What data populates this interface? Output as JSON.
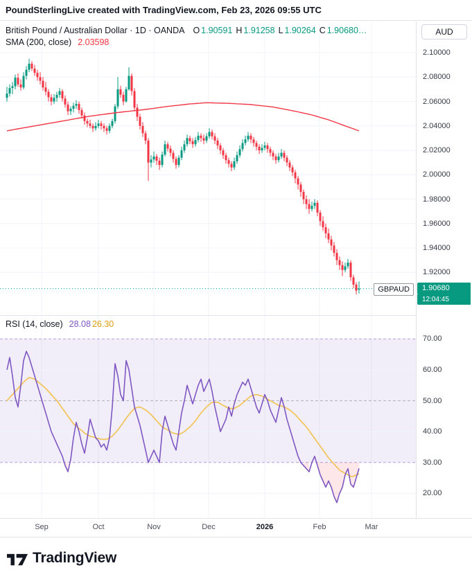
{
  "header": {
    "attribution": "PoundSterlingLive created with TradingView.com, Feb 23, 2026 09:55 UTC"
  },
  "legend": {
    "main_title": "British Pound / Australian Dollar · 1D · OANDA",
    "o_key": "O",
    "o_val": "1.90591",
    "h_key": "H",
    "h_val": "1.91258",
    "l_key": "L",
    "l_val": "1.90264",
    "c_key": "C",
    "c_val": "1.90680…",
    "sma_title": "SMA (200, close)",
    "sma_val": "2.03598",
    "rsi_title": "RSI (14, close)",
    "rsi_val": "28.08",
    "rsi_ma_val": "26.30"
  },
  "price_axis": {
    "currency": "AUD",
    "symbol": "GBPAUD",
    "last_price_label": "1.90680",
    "countdown": "12:04:45"
  },
  "footer": {
    "brand": "TradingView"
  },
  "colors": {
    "up": "#089981",
    "down": "#F23645",
    "sma": "#F23645",
    "rsi": "#7E57C2",
    "rsi_ma": "#F2C14E",
    "grid": "#F0F3FA",
    "band_fill": "rgba(126,87,194,0.10)",
    "band_line": "rgba(126,87,194,0.55)",
    "mid_line": "rgba(120,123,134,0.55)",
    "oversold_fill": "rgba(242,54,69,0.12)",
    "label_bg": "#089981",
    "border": "#E0E3EB"
  },
  "chart_data": {
    "type": "candlestick",
    "title": "British Pound / Australian Dollar",
    "interval": "1D",
    "venue": "OANDA",
    "last_price": 1.9068,
    "price_scale": {
      "min": 1.885,
      "max": 2.125,
      "labels": [
        "2.10000",
        "2.08000",
        "2.06000",
        "2.04000",
        "2.02000",
        "2.00000",
        "1.98000",
        "1.96000",
        "1.94000",
        "1.92000"
      ]
    },
    "time_ticks": [
      {
        "label": "Sep",
        "index": 12.5
      },
      {
        "label": "Oct",
        "index": 33
      },
      {
        "label": "Nov",
        "index": 53
      },
      {
        "label": "Dec",
        "index": 72.75
      },
      {
        "label": "2026",
        "index": 93,
        "major": true
      },
      {
        "label": "Feb",
        "index": 112.75
      },
      {
        "label": "Mar",
        "index": 131.5
      }
    ],
    "ohlc": [
      [
        2.063,
        2.072,
        2.06,
        2.0665
      ],
      [
        2.0665,
        2.074,
        2.064,
        2.071
      ],
      [
        2.071,
        2.076,
        2.066,
        2.0725
      ],
      [
        2.0725,
        2.082,
        2.07,
        2.0795
      ],
      [
        2.0795,
        2.083,
        2.072,
        2.074
      ],
      [
        2.074,
        2.078,
        2.069,
        2.0715
      ],
      [
        2.0715,
        2.084,
        2.07,
        2.081
      ],
      [
        2.081,
        2.089,
        2.078,
        2.086
      ],
      [
        2.086,
        2.095,
        2.084,
        2.091
      ],
      [
        2.091,
        2.093,
        2.085,
        2.087
      ],
      [
        2.087,
        2.09,
        2.081,
        2.0835
      ],
      [
        2.0835,
        2.086,
        2.077,
        2.08
      ],
      [
        2.08,
        2.084,
        2.074,
        2.077
      ],
      [
        2.077,
        2.08,
        2.069,
        2.0715
      ],
      [
        2.0715,
        2.076,
        2.065,
        2.068
      ],
      [
        2.068,
        2.07,
        2.06,
        2.0635
      ],
      [
        2.0635,
        2.066,
        2.057,
        2.06
      ],
      [
        2.06,
        2.066,
        2.058,
        2.063
      ],
      [
        2.063,
        2.068,
        2.06,
        2.0655
      ],
      [
        2.0655,
        2.071,
        2.063,
        2.0685
      ],
      [
        2.0685,
        2.07,
        2.06,
        2.0625
      ],
      [
        2.0625,
        2.065,
        2.055,
        2.0575
      ],
      [
        2.0575,
        2.06,
        2.049,
        2.052
      ],
      [
        2.052,
        2.056,
        2.049,
        2.054
      ],
      [
        2.054,
        2.059,
        2.051,
        2.0565
      ],
      [
        2.0565,
        2.061,
        2.054,
        2.058
      ],
      [
        2.058,
        2.06,
        2.05,
        2.053
      ],
      [
        2.053,
        2.055,
        2.046,
        2.0485
      ],
      [
        2.0485,
        2.051,
        2.041,
        2.044
      ],
      [
        2.044,
        2.046,
        2.039,
        2.042
      ],
      [
        2.042,
        2.045,
        2.038,
        2.04
      ],
      [
        2.04,
        2.042,
        2.035,
        2.038
      ],
      [
        2.038,
        2.043,
        2.036,
        2.04
      ],
      [
        2.04,
        2.045,
        2.038,
        2.042
      ],
      [
        2.042,
        2.044,
        2.037,
        2.04
      ],
      [
        2.04,
        2.042,
        2.035,
        2.038
      ],
      [
        2.038,
        2.04,
        2.033,
        2.036
      ],
      [
        2.036,
        2.042,
        2.034,
        2.04
      ],
      [
        2.04,
        2.046,
        2.038,
        2.044
      ],
      [
        2.044,
        2.058,
        2.042,
        2.056
      ],
      [
        2.056,
        2.08,
        2.054,
        2.07
      ],
      [
        2.07,
        2.073,
        2.063,
        2.0655
      ],
      [
        2.0655,
        2.068,
        2.057,
        2.06
      ],
      [
        2.06,
        2.072,
        2.059,
        2.07
      ],
      [
        2.07,
        2.088,
        2.069,
        2.081
      ],
      [
        2.081,
        2.083,
        2.065,
        2.0685
      ],
      [
        2.0685,
        2.071,
        2.052,
        2.055
      ],
      [
        2.055,
        2.058,
        2.044,
        2.0475
      ],
      [
        2.0475,
        2.05,
        2.037,
        2.04
      ],
      [
        2.04,
        2.043,
        2.031,
        2.034
      ],
      [
        2.034,
        2.036,
        2.025,
        2.028
      ],
      [
        2.028,
        2.03,
        1.995,
        2.01
      ],
      [
        2.01,
        2.016,
        2.006,
        2.0125
      ],
      [
        2.0125,
        2.019,
        2.01,
        2.015
      ],
      [
        2.015,
        2.017,
        2.008,
        2.0115
      ],
      [
        2.0115,
        2.014,
        2.004,
        2.008
      ],
      [
        2.008,
        2.019,
        2.006,
        2.0165
      ],
      [
        2.0165,
        2.028,
        2.015,
        2.025
      ],
      [
        2.025,
        2.027,
        2.019,
        2.0215
      ],
      [
        2.0215,
        2.024,
        2.015,
        2.018
      ],
      [
        2.018,
        2.02,
        2.01,
        2.013
      ],
      [
        2.013,
        2.015,
        2.005,
        2.008
      ],
      [
        2.008,
        2.016,
        2.006,
        2.014
      ],
      [
        2.014,
        2.023,
        2.012,
        2.02
      ],
      [
        2.02,
        2.028,
        2.018,
        2.025
      ],
      [
        2.025,
        2.033,
        2.023,
        2.03
      ],
      [
        2.03,
        2.032,
        2.025,
        2.0275
      ],
      [
        2.0275,
        2.03,
        2.022,
        2.025
      ],
      [
        2.025,
        2.031,
        2.023,
        2.0285
      ],
      [
        2.0285,
        2.035,
        2.0265,
        2.032
      ],
      [
        2.032,
        2.034,
        2.027,
        2.03
      ],
      [
        2.03,
        2.033,
        2.025,
        2.028
      ],
      [
        2.028,
        2.034,
        2.026,
        2.0315
      ],
      [
        2.0315,
        2.038,
        2.0295,
        2.035
      ],
      [
        2.035,
        2.037,
        2.029,
        2.0315
      ],
      [
        2.0315,
        2.034,
        2.025,
        2.028
      ],
      [
        2.028,
        2.03,
        2.021,
        2.024
      ],
      [
        2.024,
        2.026,
        2.017,
        2.02
      ],
      [
        2.02,
        2.022,
        2.013,
        2.016
      ],
      [
        2.016,
        2.018,
        2.009,
        2.012
      ],
      [
        2.012,
        2.014,
        2.006,
        2.009
      ],
      [
        2.009,
        2.011,
        2.003,
        2.006
      ],
      [
        2.006,
        2.014,
        2.004,
        2.011
      ],
      [
        2.011,
        2.019,
        2.009,
        2.016
      ],
      [
        2.016,
        2.024,
        2.014,
        2.021
      ],
      [
        2.021,
        2.029,
        2.019,
        2.026
      ],
      [
        2.026,
        2.032,
        2.024,
        2.029
      ],
      [
        2.029,
        2.035,
        2.027,
        2.032
      ],
      [
        2.032,
        2.034,
        2.026,
        2.029
      ],
      [
        2.029,
        2.031,
        2.023,
        2.026
      ],
      [
        2.026,
        2.028,
        2.02,
        2.023
      ],
      [
        2.023,
        2.025,
        2.017,
        2.02
      ],
      [
        2.02,
        2.025,
        2.018,
        2.022
      ],
      [
        2.022,
        2.027,
        2.02,
        2.024
      ],
      [
        2.024,
        2.026,
        2.018,
        2.021
      ],
      [
        2.021,
        2.023,
        2.015,
        2.018
      ],
      [
        2.018,
        2.02,
        2.012,
        2.015
      ],
      [
        2.015,
        2.017,
        2.009,
        2.012
      ],
      [
        2.012,
        2.018,
        2.01,
        2.015
      ],
      [
        2.015,
        2.021,
        2.013,
        2.018
      ],
      [
        2.018,
        2.02,
        2.011,
        2.014
      ],
      [
        2.014,
        2.016,
        2.007,
        2.01
      ],
      [
        2.01,
        2.012,
        2.003,
        2.006
      ],
      [
        2.006,
        2.008,
        1.999,
        2.002
      ],
      [
        2.002,
        2.004,
        1.993,
        1.997
      ],
      [
        1.997,
        1.999,
        1.988,
        1.992
      ],
      [
        1.992,
        1.994,
        1.982,
        1.986
      ],
      [
        1.986,
        1.988,
        1.976,
        1.98
      ],
      [
        1.98,
        1.983,
        1.972,
        1.976
      ],
      [
        1.976,
        1.98,
        1.968,
        1.972
      ],
      [
        1.972,
        1.978,
        1.97,
        1.9745
      ],
      [
        1.9745,
        1.98,
        1.972,
        1.977
      ],
      [
        1.977,
        1.979,
        1.966,
        1.969
      ],
      [
        1.969,
        1.971,
        1.958,
        1.962
      ],
      [
        1.962,
        1.966,
        1.954,
        1.957
      ],
      [
        1.957,
        1.96,
        1.948,
        1.952
      ],
      [
        1.952,
        1.956,
        1.944,
        1.947
      ],
      [
        1.947,
        1.95,
        1.938,
        1.942
      ],
      [
        1.942,
        1.945,
        1.933,
        1.936
      ],
      [
        1.936,
        1.939,
        1.926,
        1.93
      ],
      [
        1.93,
        1.933,
        1.922,
        1.926
      ],
      [
        1.926,
        1.929,
        1.917,
        1.922
      ],
      [
        1.922,
        1.928,
        1.92,
        1.925
      ],
      [
        1.925,
        1.931,
        1.923,
        1.928
      ],
      [
        1.928,
        1.93,
        1.913,
        1.916
      ],
      [
        1.916,
        1.918,
        1.907,
        1.91
      ],
      [
        1.91,
        1.912,
        1.902,
        1.905
      ],
      [
        1.90591,
        1.91258,
        1.90264,
        1.9068
      ]
    ],
    "overlays": [
      {
        "name": "SMA (200, close)",
        "value": 2.03598,
        "color": "#F23645",
        "anchors": [
          [
            0,
            2.036
          ],
          [
            10,
            2.04
          ],
          [
            20,
            2.044
          ],
          [
            30,
            2.048
          ],
          [
            40,
            2.051
          ],
          [
            50,
            2.0535
          ],
          [
            58,
            2.056
          ],
          [
            66,
            2.058
          ],
          [
            72,
            2.059
          ],
          [
            80,
            2.0585
          ],
          [
            88,
            2.0575
          ],
          [
            96,
            2.0555
          ],
          [
            104,
            2.052
          ],
          [
            110,
            2.049
          ],
          [
            116,
            2.045
          ],
          [
            122,
            2.04
          ],
          [
            127,
            2.036
          ]
        ]
      }
    ],
    "rsi": {
      "name": "RSI (14, close)",
      "value": 28.08,
      "ma_value": 26.3,
      "min": 12,
      "max": 77.5,
      "bands": {
        "upper": 70,
        "middle": 50,
        "lower": 30
      },
      "axis_labels": [
        "70.00",
        "60.00",
        "50.00",
        "40.00",
        "30.00",
        "20.00"
      ],
      "minor_grid": [
        60,
        40,
        20
      ],
      "values": [
        60,
        64,
        58,
        51,
        48,
        55,
        63,
        66,
        64,
        61,
        58,
        55,
        52,
        49,
        46,
        43,
        40,
        38,
        36,
        34,
        32,
        29,
        27,
        31,
        38,
        43,
        40,
        36,
        33,
        38,
        44,
        41,
        38,
        37,
        35,
        36,
        34,
        38,
        48,
        62,
        58,
        52,
        50,
        63,
        60,
        54,
        48,
        45,
        42,
        38,
        34,
        30,
        32,
        34,
        32,
        30,
        40,
        45,
        42,
        39,
        36,
        34,
        40,
        46,
        50,
        55,
        52,
        49,
        52,
        55,
        57,
        53,
        55,
        57,
        53,
        48,
        44,
        40,
        42,
        44,
        48,
        45,
        49,
        52,
        54,
        56,
        55,
        57,
        54,
        51,
        48,
        46,
        49,
        52,
        50,
        47,
        45,
        43,
        47,
        51,
        48,
        44,
        41,
        38,
        35,
        32,
        30,
        29,
        28,
        27,
        30,
        32,
        29,
        26,
        24,
        22,
        24,
        22,
        19,
        17,
        20,
        22,
        26,
        28,
        23,
        22,
        25,
        28.08
      ],
      "ma_values": [
        50,
        51,
        52,
        53,
        54,
        55,
        56,
        56.8,
        57.5,
        57.3,
        57,
        56.3,
        55.5,
        54.8,
        54,
        53,
        52,
        51,
        50,
        48.8,
        47.5,
        46.3,
        45,
        43.8,
        42.5,
        41.8,
        41,
        40.3,
        39.5,
        39,
        38.5,
        38.3,
        38,
        37.8,
        37.5,
        37.5,
        37.5,
        38,
        38.5,
        39.5,
        40.5,
        41.8,
        43,
        44.3,
        45.5,
        46.5,
        47.5,
        47.8,
        48,
        47.5,
        47,
        46.3,
        45.5,
        44.5,
        43.5,
        42.5,
        41.5,
        41,
        40.5,
        40,
        39.5,
        39.3,
        39,
        39.5,
        40,
        40.8,
        41.5,
        42.5,
        43.5,
        44.8,
        46,
        47,
        48,
        48.8,
        49.5,
        49.5,
        49.5,
        49,
        48.5,
        48,
        47.5,
        47.5,
        47.5,
        48,
        48.5,
        49.3,
        50,
        50.8,
        51.5,
        51.8,
        52,
        51.8,
        51.5,
        51,
        50.5,
        50,
        49.5,
        49,
        48.5,
        48.3,
        48,
        47.5,
        47,
        46.3,
        45.5,
        44.5,
        43.5,
        42.5,
        41.5,
        40.3,
        39,
        37.8,
        36.5,
        35.3,
        34,
        32.8,
        31.5,
        30.5,
        29.5,
        28.5,
        27.5,
        27,
        26.5,
        26,
        25.5,
        25.5,
        26,
        26.3
      ]
    }
  }
}
